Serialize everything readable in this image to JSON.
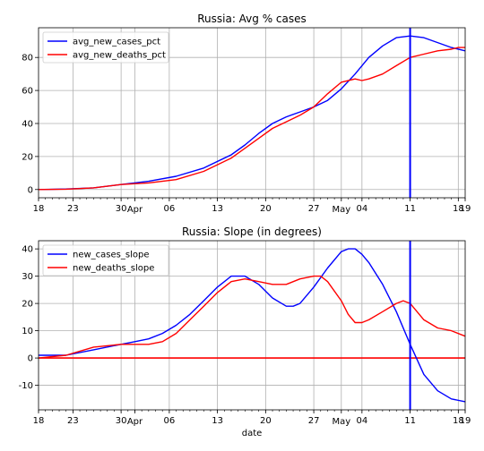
{
  "xlabel": "date",
  "chart_data": [
    {
      "type": "line",
      "title": "Russia: Avg % cases",
      "xlabel": "",
      "ylabel": "",
      "x_range_days": [
        0,
        62
      ],
      "ylim": [
        -5,
        98
      ],
      "y_ticks": [
        0,
        20,
        40,
        60,
        80
      ],
      "x_ticks": [
        {
          "day": 0,
          "label": "18"
        },
        {
          "day": 5,
          "label": "23"
        },
        {
          "day": 12,
          "label": "30"
        },
        {
          "day": 14,
          "label": "Apr"
        },
        {
          "day": 19,
          "label": "06"
        },
        {
          "day": 26,
          "label": "13"
        },
        {
          "day": 33,
          "label": "20"
        },
        {
          "day": 40,
          "label": "27"
        },
        {
          "day": 44,
          "label": "May"
        },
        {
          "day": 47,
          "label": "04"
        },
        {
          "day": 54,
          "label": "11"
        },
        {
          "day": 61,
          "label": "18"
        },
        {
          "day": 62,
          "label": "19"
        }
      ],
      "grid": true,
      "legend": "upper-left",
      "vline_day": 54,
      "vline_color": "#0000ff",
      "series": [
        {
          "name": "avg_new_cases_pct",
          "color": "#0000ff",
          "x": [
            0,
            4,
            8,
            12,
            16,
            20,
            24,
            28,
            30,
            32,
            34,
            36,
            38,
            40,
            42,
            44,
            46,
            48,
            50,
            52,
            54,
            56,
            58,
            60,
            62
          ],
          "y": [
            0,
            0.3,
            1,
            3,
            5,
            8,
            13,
            21,
            27,
            34,
            40,
            44,
            47,
            50,
            54,
            61,
            70,
            80,
            87,
            92,
            93,
            92,
            89,
            86,
            84
          ]
        },
        {
          "name": "avg_new_deaths_pct",
          "color": "#ff0000",
          "x": [
            0,
            4,
            8,
            12,
            16,
            20,
            24,
            28,
            30,
            32,
            34,
            36,
            38,
            40,
            42,
            44,
            46,
            47,
            48,
            50,
            52,
            54,
            56,
            58,
            60,
            61,
            62
          ],
          "y": [
            0,
            0.2,
            1,
            3,
            4,
            6,
            11,
            19,
            25,
            31,
            37,
            41,
            45,
            50,
            58,
            65,
            67,
            66,
            67,
            70,
            75,
            80,
            82,
            84,
            85,
            86,
            86
          ]
        }
      ]
    },
    {
      "type": "line",
      "title": "Russia: Slope (in degrees)",
      "xlabel": "date",
      "ylabel": "",
      "x_range_days": [
        0,
        62
      ],
      "ylim": [
        -19,
        43
      ],
      "y_ticks": [
        -10,
        0,
        10,
        20,
        30,
        40
      ],
      "x_ticks": [
        {
          "day": 0,
          "label": "18"
        },
        {
          "day": 5,
          "label": "23"
        },
        {
          "day": 12,
          "label": "30"
        },
        {
          "day": 14,
          "label": "Apr"
        },
        {
          "day": 19,
          "label": "06"
        },
        {
          "day": 26,
          "label": "13"
        },
        {
          "day": 33,
          "label": "20"
        },
        {
          "day": 40,
          "label": "27"
        },
        {
          "day": 44,
          "label": "May"
        },
        {
          "day": 47,
          "label": "04"
        },
        {
          "day": 54,
          "label": "11"
        },
        {
          "day": 61,
          "label": "18"
        },
        {
          "day": 62,
          "label": "19"
        }
      ],
      "grid": true,
      "legend": "upper-left",
      "vline_day": 54,
      "vline_color": "#0000ff",
      "hline_y": 0,
      "hline_color": "#ff0000",
      "series": [
        {
          "name": "new_cases_slope",
          "color": "#0000ff",
          "x": [
            0,
            4,
            8,
            12,
            14,
            16,
            18,
            20,
            22,
            24,
            26,
            28,
            30,
            32,
            34,
            36,
            37,
            38,
            40,
            42,
            44,
            45,
            46,
            47,
            48,
            50,
            52,
            54,
            56,
            58,
            60,
            62
          ],
          "y": [
            1,
            1,
            3,
            5,
            6,
            7,
            9,
            12,
            16,
            21,
            26,
            30,
            30,
            27,
            22,
            19,
            19,
            20,
            26,
            33,
            39,
            40,
            40,
            38,
            35,
            27,
            17,
            5,
            -6,
            -12,
            -15,
            -16
          ]
        },
        {
          "name": "new_deaths_slope",
          "color": "#ff0000",
          "x": [
            0,
            4,
            8,
            12,
            14,
            16,
            18,
            20,
            22,
            24,
            26,
            28,
            30,
            32,
            34,
            36,
            38,
            40,
            41,
            42,
            44,
            45,
            46,
            47,
            48,
            50,
            52,
            53,
            54,
            56,
            58,
            60,
            62
          ],
          "y": [
            0,
            1,
            4,
            5,
            5,
            5,
            6,
            9,
            14,
            19,
            24,
            28,
            29,
            28,
            27,
            27,
            29,
            30,
            30,
            28,
            21,
            16,
            13,
            13,
            14,
            17,
            20,
            21,
            20,
            14,
            11,
            10,
            8
          ]
        }
      ]
    }
  ]
}
